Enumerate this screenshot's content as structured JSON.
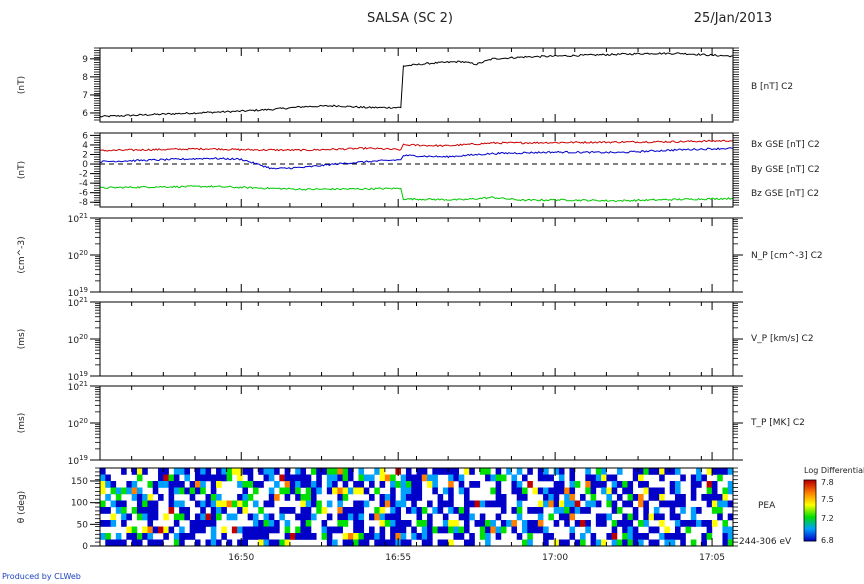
{
  "header": {
    "title": "SALSA (SC 2)",
    "date": "25/Jan/2013"
  },
  "footer": {
    "credit": "Produced by CLWeb"
  },
  "chart_data": [
    {
      "type": "line",
      "ylabel": "(nT)",
      "ylim": [
        5.5,
        9.6
      ],
      "yticks": [
        6,
        7,
        8,
        9
      ],
      "xticks": [
        "16:50",
        "16:55",
        "17:00",
        "17:05"
      ],
      "series": [
        {
          "name": "B [nT] C2",
          "color": "#000000",
          "x": [
            "16:45:30",
            "16:47:00",
            "16:48:30",
            "16:50:00",
            "16:51:00",
            "16:52:00",
            "16:53:00",
            "16:54:00",
            "16:55:05",
            "16:55:10",
            "16:56:00",
            "16:57:00",
            "16:57:30",
            "16:58:00",
            "16:59:00",
            "17:00:00",
            "17:01:00",
            "17:02:00",
            "17:03:00",
            "17:04:00",
            "17:05:00",
            "17:05:40"
          ],
          "values": [
            5.8,
            5.9,
            6.0,
            6.1,
            6.2,
            6.35,
            6.4,
            6.3,
            6.3,
            8.6,
            8.75,
            8.85,
            8.7,
            9.0,
            9.1,
            9.15,
            9.2,
            9.25,
            9.3,
            9.3,
            9.2,
            9.15
          ]
        }
      ]
    },
    {
      "type": "line",
      "ylabel": "(nT)",
      "ylim": [
        -9,
        6.5
      ],
      "yticks": [
        6,
        4,
        2,
        0,
        -2,
        -4,
        -6,
        -8
      ],
      "zero_line": true,
      "xticks": [
        "16:50",
        "16:55",
        "17:00",
        "17:05"
      ],
      "series": [
        {
          "name": "Bx GSE [nT] C2",
          "color": "#cc0000",
          "x": [
            "16:45:30",
            "16:47:00",
            "16:49:00",
            "16:50:00",
            "16:52:00",
            "16:54:00",
            "16:55:05",
            "16:55:10",
            "16:56:30",
            "16:58:00",
            "17:00:00",
            "17:02:00",
            "17:04:00",
            "17:05:40"
          ],
          "values": [
            2.8,
            3.0,
            3.2,
            3.0,
            2.9,
            3.3,
            3.0,
            4.0,
            3.8,
            4.4,
            4.5,
            4.6,
            4.7,
            4.9
          ]
        },
        {
          "name": "By GSE [nT] C2",
          "color": "#00c800",
          "x": [
            "16:45:30",
            "16:47:00",
            "16:49:00",
            "16:50:30",
            "16:52:00",
            "16:54:00",
            "16:55:05",
            "16:55:10",
            "16:57:00",
            "16:58:00",
            "16:59:00",
            "17:00:00",
            "17:02:00",
            "17:04:00",
            "17:05:40"
          ],
          "values": [
            -5.0,
            -4.8,
            -4.7,
            -5.0,
            -5.3,
            -5.2,
            -5.1,
            -7.3,
            -7.5,
            -7.0,
            -7.6,
            -7.5,
            -7.7,
            -7.4,
            -7.2
          ]
        },
        {
          "name": "Bz GSE [nT] C2",
          "color": "#0000cc",
          "x": [
            "16:45:30",
            "16:47:00",
            "16:49:00",
            "16:50:00",
            "16:51:00",
            "16:52:00",
            "16:53:00",
            "16:54:00",
            "16:55:05",
            "16:55:10",
            "16:56:30",
            "16:58:00",
            "17:00:00",
            "17:02:00",
            "17:04:00",
            "17:05:40"
          ],
          "values": [
            0.5,
            0.8,
            1.2,
            1.0,
            -1.0,
            -0.7,
            0.0,
            0.5,
            0.9,
            1.8,
            1.5,
            2.2,
            2.5,
            2.4,
            3.0,
            3.3
          ]
        }
      ]
    },
    {
      "type": "line",
      "ylabel": "(cm^-3)",
      "log_scale": true,
      "ylim": [
        1e+19,
        1e+21
      ],
      "yticks": [
        "10^19",
        "10^20",
        "10^21"
      ],
      "xticks": [
        "16:50",
        "16:55",
        "17:00",
        "17:05"
      ],
      "series": [
        {
          "name": "N_P [cm^-3] C2",
          "values": []
        }
      ]
    },
    {
      "type": "line",
      "ylabel": "(ms)",
      "log_scale": true,
      "ylim": [
        1e+19,
        1e+21
      ],
      "yticks": [
        "10^19",
        "10^20",
        "10^21"
      ],
      "xticks": [
        "16:50",
        "16:55",
        "17:00",
        "17:05"
      ],
      "series": [
        {
          "name": "V_P [km/s] C2",
          "values": []
        }
      ]
    },
    {
      "type": "line",
      "ylabel": "(ms)",
      "log_scale": true,
      "ylim": [
        1e+19,
        1e+21
      ],
      "yticks": [
        "10^19",
        "10^20",
        "10^21"
      ],
      "xticks": [
        "16:50",
        "16:55",
        "17:00",
        "17:05"
      ],
      "series": [
        {
          "name": "T_P [MK] C2",
          "values": []
        }
      ]
    },
    {
      "type": "heatmap",
      "ylabel": "θ (deg)",
      "ylim": [
        0,
        180
      ],
      "yticks": [
        0,
        50,
        100,
        150
      ],
      "xticks": [
        "16:50",
        "16:55",
        "17:00",
        "17:05"
      ],
      "label": "PEA",
      "energy_range": "244-306 eV",
      "colorbar": {
        "title": "Log Differential",
        "ticks": [
          "7.8",
          "7.5",
          "7.2",
          "6.8"
        ],
        "range": [
          6.8,
          7.8
        ],
        "colors": [
          "#0000c8",
          "#00a0ff",
          "#00e000",
          "#ffff00",
          "#ff8000",
          "#c00000"
        ]
      }
    }
  ]
}
